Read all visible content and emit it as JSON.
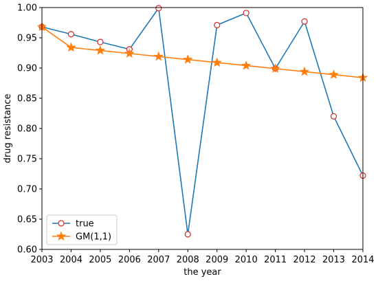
{
  "chart_data": {
    "type": "line",
    "title": "",
    "xlabel": "the year",
    "ylabel": "drug resistance",
    "x": [
      2003,
      2004,
      2005,
      2006,
      2007,
      2008,
      2009,
      2010,
      2011,
      2012,
      2013,
      2014
    ],
    "xlim": [
      2003,
      2014
    ],
    "ylim": [
      0.6,
      1.0
    ],
    "xticks": [
      "2003",
      "2004",
      "2005",
      "2006",
      "2007",
      "2008",
      "2009",
      "2010",
      "2011",
      "2012",
      "2013",
      "2014"
    ],
    "yticks": [
      "0.60",
      "0.65",
      "0.70",
      "0.75",
      "0.80",
      "0.85",
      "0.90",
      "0.95",
      "1.00"
    ],
    "grid": false,
    "legend_position": "bottom-left",
    "series": [
      {
        "name": "true",
        "marker": "open-circle",
        "line_color": "#1f77b4",
        "marker_color": "#d62728",
        "values": [
          0.968,
          0.956,
          0.943,
          0.931,
          0.999,
          0.625,
          0.971,
          0.991,
          0.899,
          0.977,
          0.82,
          0.722
        ]
      },
      {
        "name": "GM(1,1)",
        "marker": "star",
        "line_color": "#ff7f0e",
        "marker_color": "#ff7f0e",
        "values": [
          0.968,
          0.934,
          0.929,
          0.924,
          0.919,
          0.914,
          0.909,
          0.904,
          0.899,
          0.894,
          0.889,
          0.884
        ]
      }
    ]
  }
}
